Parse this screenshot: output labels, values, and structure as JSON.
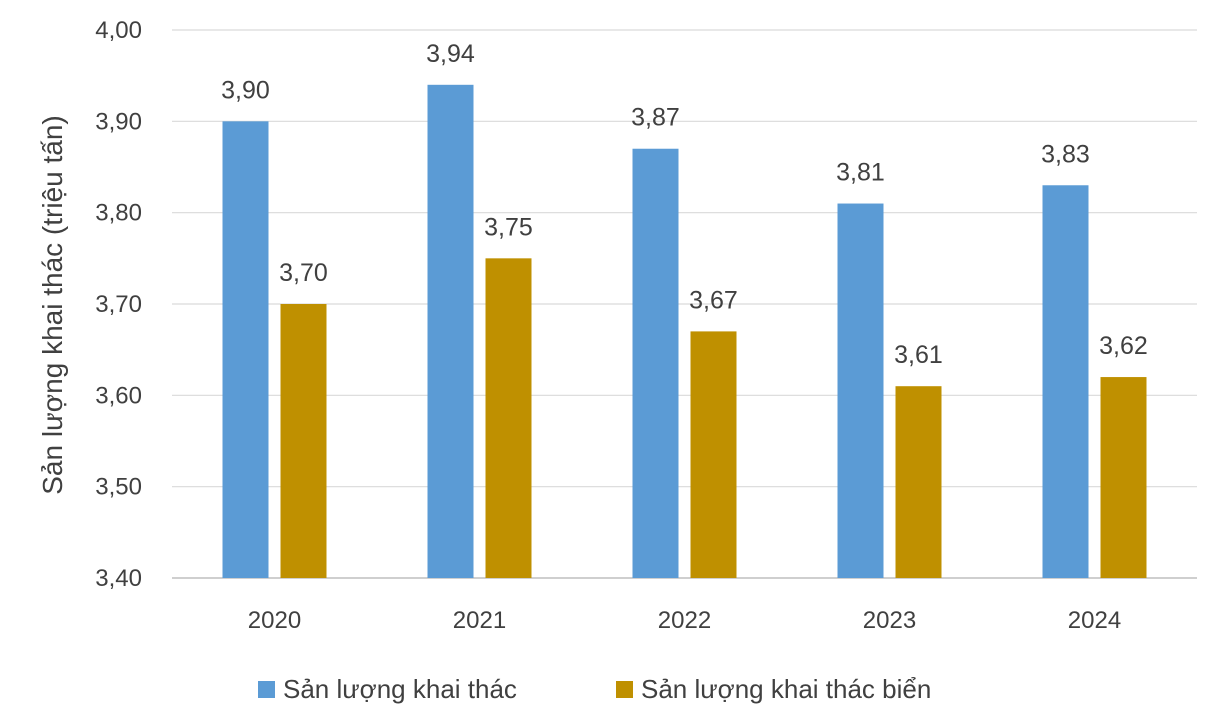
{
  "chart_data": {
    "type": "bar",
    "title": "",
    "xlabel": "",
    "ylabel": "Sản lượng khai thác (triệu tấn)",
    "categories": [
      "2020",
      "2021",
      "2022",
      "2023",
      "2024"
    ],
    "ylim": [
      3.4,
      4.0
    ],
    "yticks": [
      "3,40",
      "3,50",
      "3,60",
      "3,70",
      "3,80",
      "3,90",
      "4,00"
    ],
    "grid": true,
    "legend_position": "bottom",
    "series": [
      {
        "name": "Sản lượng khai thác",
        "color": "#5B9BD5",
        "values": [
          3.9,
          3.94,
          3.87,
          3.81,
          3.83
        ],
        "labels": [
          "3,90",
          "3,94",
          "3,87",
          "3,81",
          "3,83"
        ]
      },
      {
        "name": "Sản lượng khai thác biển",
        "color": "#BF9000",
        "values": [
          3.7,
          3.75,
          3.67,
          3.61,
          3.62
        ],
        "labels": [
          "3,70",
          "3,75",
          "3,67",
          "3,61",
          "3,62"
        ]
      }
    ]
  }
}
